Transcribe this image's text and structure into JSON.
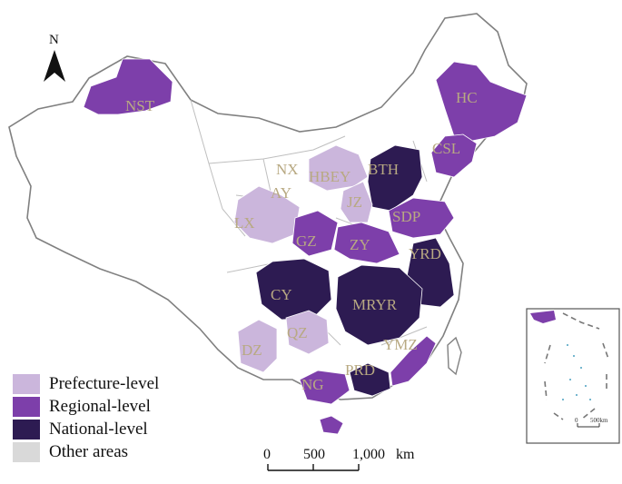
{
  "colors": {
    "prefecture": "#cbb6dc",
    "regional": "#7d3faa",
    "national": "#2d1b52",
    "other": "#d9d9d9",
    "boundary": "#bfbfbf",
    "label": "#b8a982"
  },
  "north_arrow": {
    "label": "N"
  },
  "regions": [
    {
      "code": "NST",
      "level": "regional"
    },
    {
      "code": "HC",
      "level": "regional"
    },
    {
      "code": "CSL",
      "level": "regional"
    },
    {
      "code": "BTH",
      "level": "national"
    },
    {
      "code": "NX",
      "level": "prefecture"
    },
    {
      "code": "HBEY",
      "level": "prefecture"
    },
    {
      "code": "AY",
      "level": "prefecture"
    },
    {
      "code": "JZ",
      "level": "prefecture"
    },
    {
      "code": "SDP",
      "level": "regional"
    },
    {
      "code": "LX",
      "level": "prefecture"
    },
    {
      "code": "GZ",
      "level": "regional"
    },
    {
      "code": "ZY",
      "level": "regional"
    },
    {
      "code": "YRD",
      "level": "national"
    },
    {
      "code": "CY",
      "level": "national"
    },
    {
      "code": "MRYR",
      "level": "national"
    },
    {
      "code": "QZ",
      "level": "prefecture"
    },
    {
      "code": "DZ",
      "level": "prefecture"
    },
    {
      "code": "YMZ",
      "level": "prefecture"
    },
    {
      "code": "PRD",
      "level": "national"
    },
    {
      "code": "NG",
      "level": "regional"
    }
  ],
  "legend": [
    {
      "label": "Prefecture-level",
      "level": "prefecture"
    },
    {
      "label": "Regional-level",
      "level": "regional"
    },
    {
      "label": "National-level",
      "level": "national"
    },
    {
      "label": "Other areas",
      "level": "other"
    }
  ],
  "scale_bar": {
    "ticks": [
      "0",
      "500",
      "1,000"
    ],
    "unit": "km"
  },
  "inset": {
    "scale_label": "500km",
    "scale_zero": "0"
  }
}
